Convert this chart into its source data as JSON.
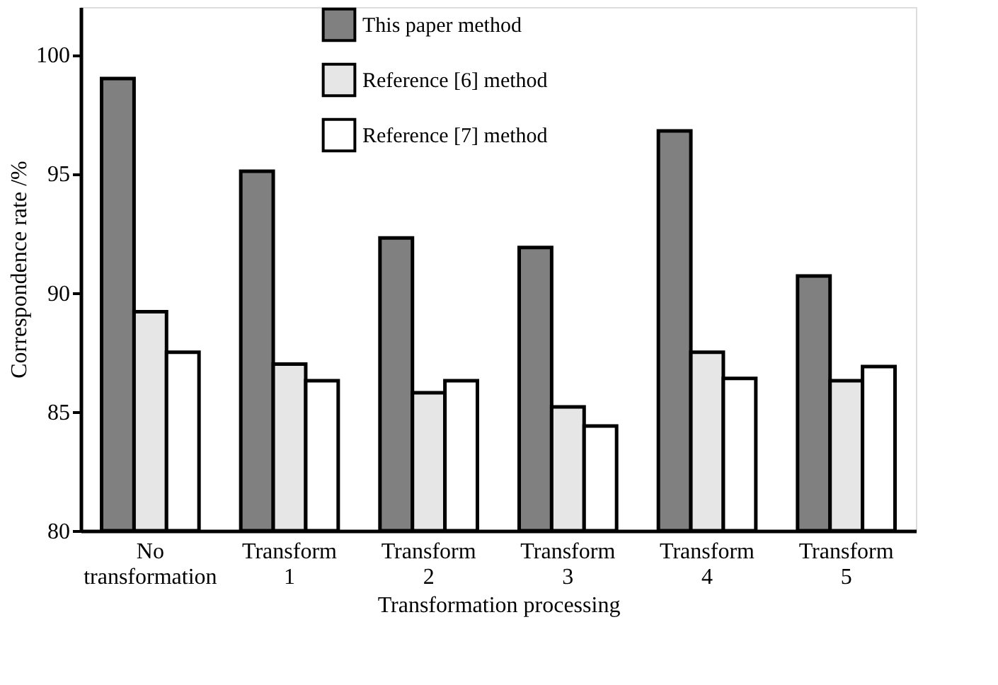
{
  "chart_data": {
    "type": "bar",
    "xlabel": "Transformation processing",
    "ylabel": "Correspondence rate /%",
    "categories": [
      "No transformation",
      "Transform 1",
      "Transform 2",
      "Transform 3",
      "Transform 4",
      "Transform 5"
    ],
    "series": [
      {
        "name": "This paper method",
        "color": "#808080",
        "values": [
          99.0,
          95.1,
          92.3,
          91.9,
          96.8,
          90.7
        ]
      },
      {
        "name": "Reference [6] method",
        "color": "#e6e6e6",
        "values": [
          89.2,
          87.0,
          85.8,
          85.2,
          87.5,
          86.3
        ]
      },
      {
        "name": "Reference [7] method",
        "color": "#ffffff",
        "values": [
          87.5,
          86.3,
          86.3,
          84.4,
          86.4,
          86.9
        ]
      }
    ],
    "ylim": [
      80,
      102
    ],
    "yticks": [
      80,
      85,
      90,
      95,
      100
    ],
    "grid": false,
    "legend": "top"
  }
}
